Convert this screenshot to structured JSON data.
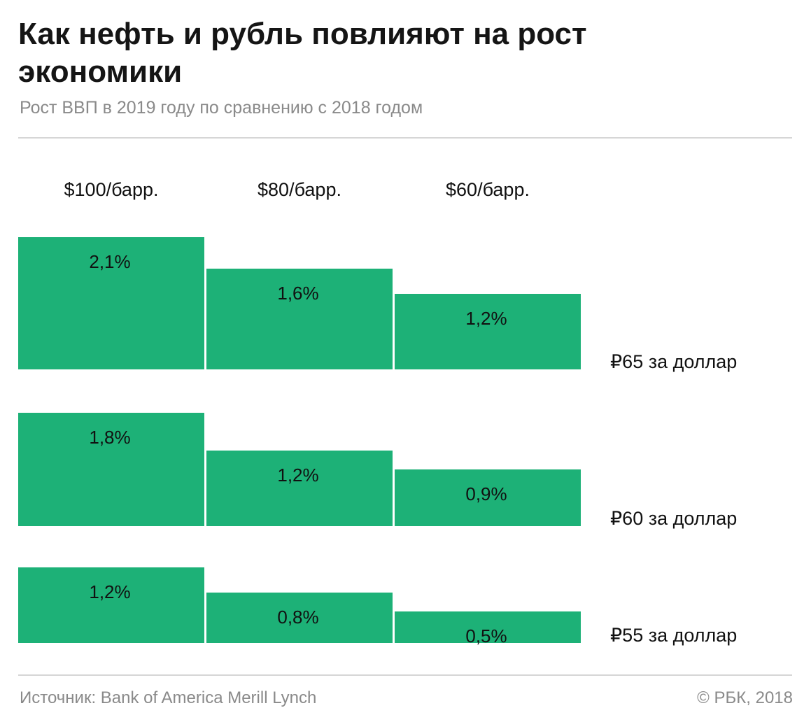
{
  "header": {
    "title": "Как нефть и рубль повлияют на рост экономики",
    "subtitle": "Рост ВВП в 2019 году по сравнению с 2018 годом"
  },
  "footer": {
    "source": "Источник: Bank of America Merill Lynch",
    "copyright": "© РБК, 2018"
  },
  "colors": {
    "bar": "#1db177",
    "text": "#111111",
    "muted": "#8a8a8a"
  },
  "chart_data": {
    "type": "bar",
    "categories": [
      "$100/барр.",
      "$80/барр.",
      "$60/барр."
    ],
    "series": [
      {
        "name": "₽65 за доллар",
        "values": [
          2.1,
          1.6,
          1.2
        ],
        "labels": [
          "2,1%",
          "1,6%",
          "1,2%"
        ]
      },
      {
        "name": "₽60 за доллар",
        "values": [
          1.8,
          1.2,
          0.9
        ],
        "labels": [
          "1,8%",
          "1,2%",
          "0,9%"
        ]
      },
      {
        "name": "₽55 за доллар",
        "values": [
          1.2,
          0.8,
          0.5
        ],
        "labels": [
          "1,2%",
          "0,8%",
          "0,5%"
        ]
      }
    ],
    "title": "Как нефть и рубль повлияют на рост экономики",
    "xlabel": "",
    "ylabel": "",
    "grid": false,
    "legend": "right"
  }
}
